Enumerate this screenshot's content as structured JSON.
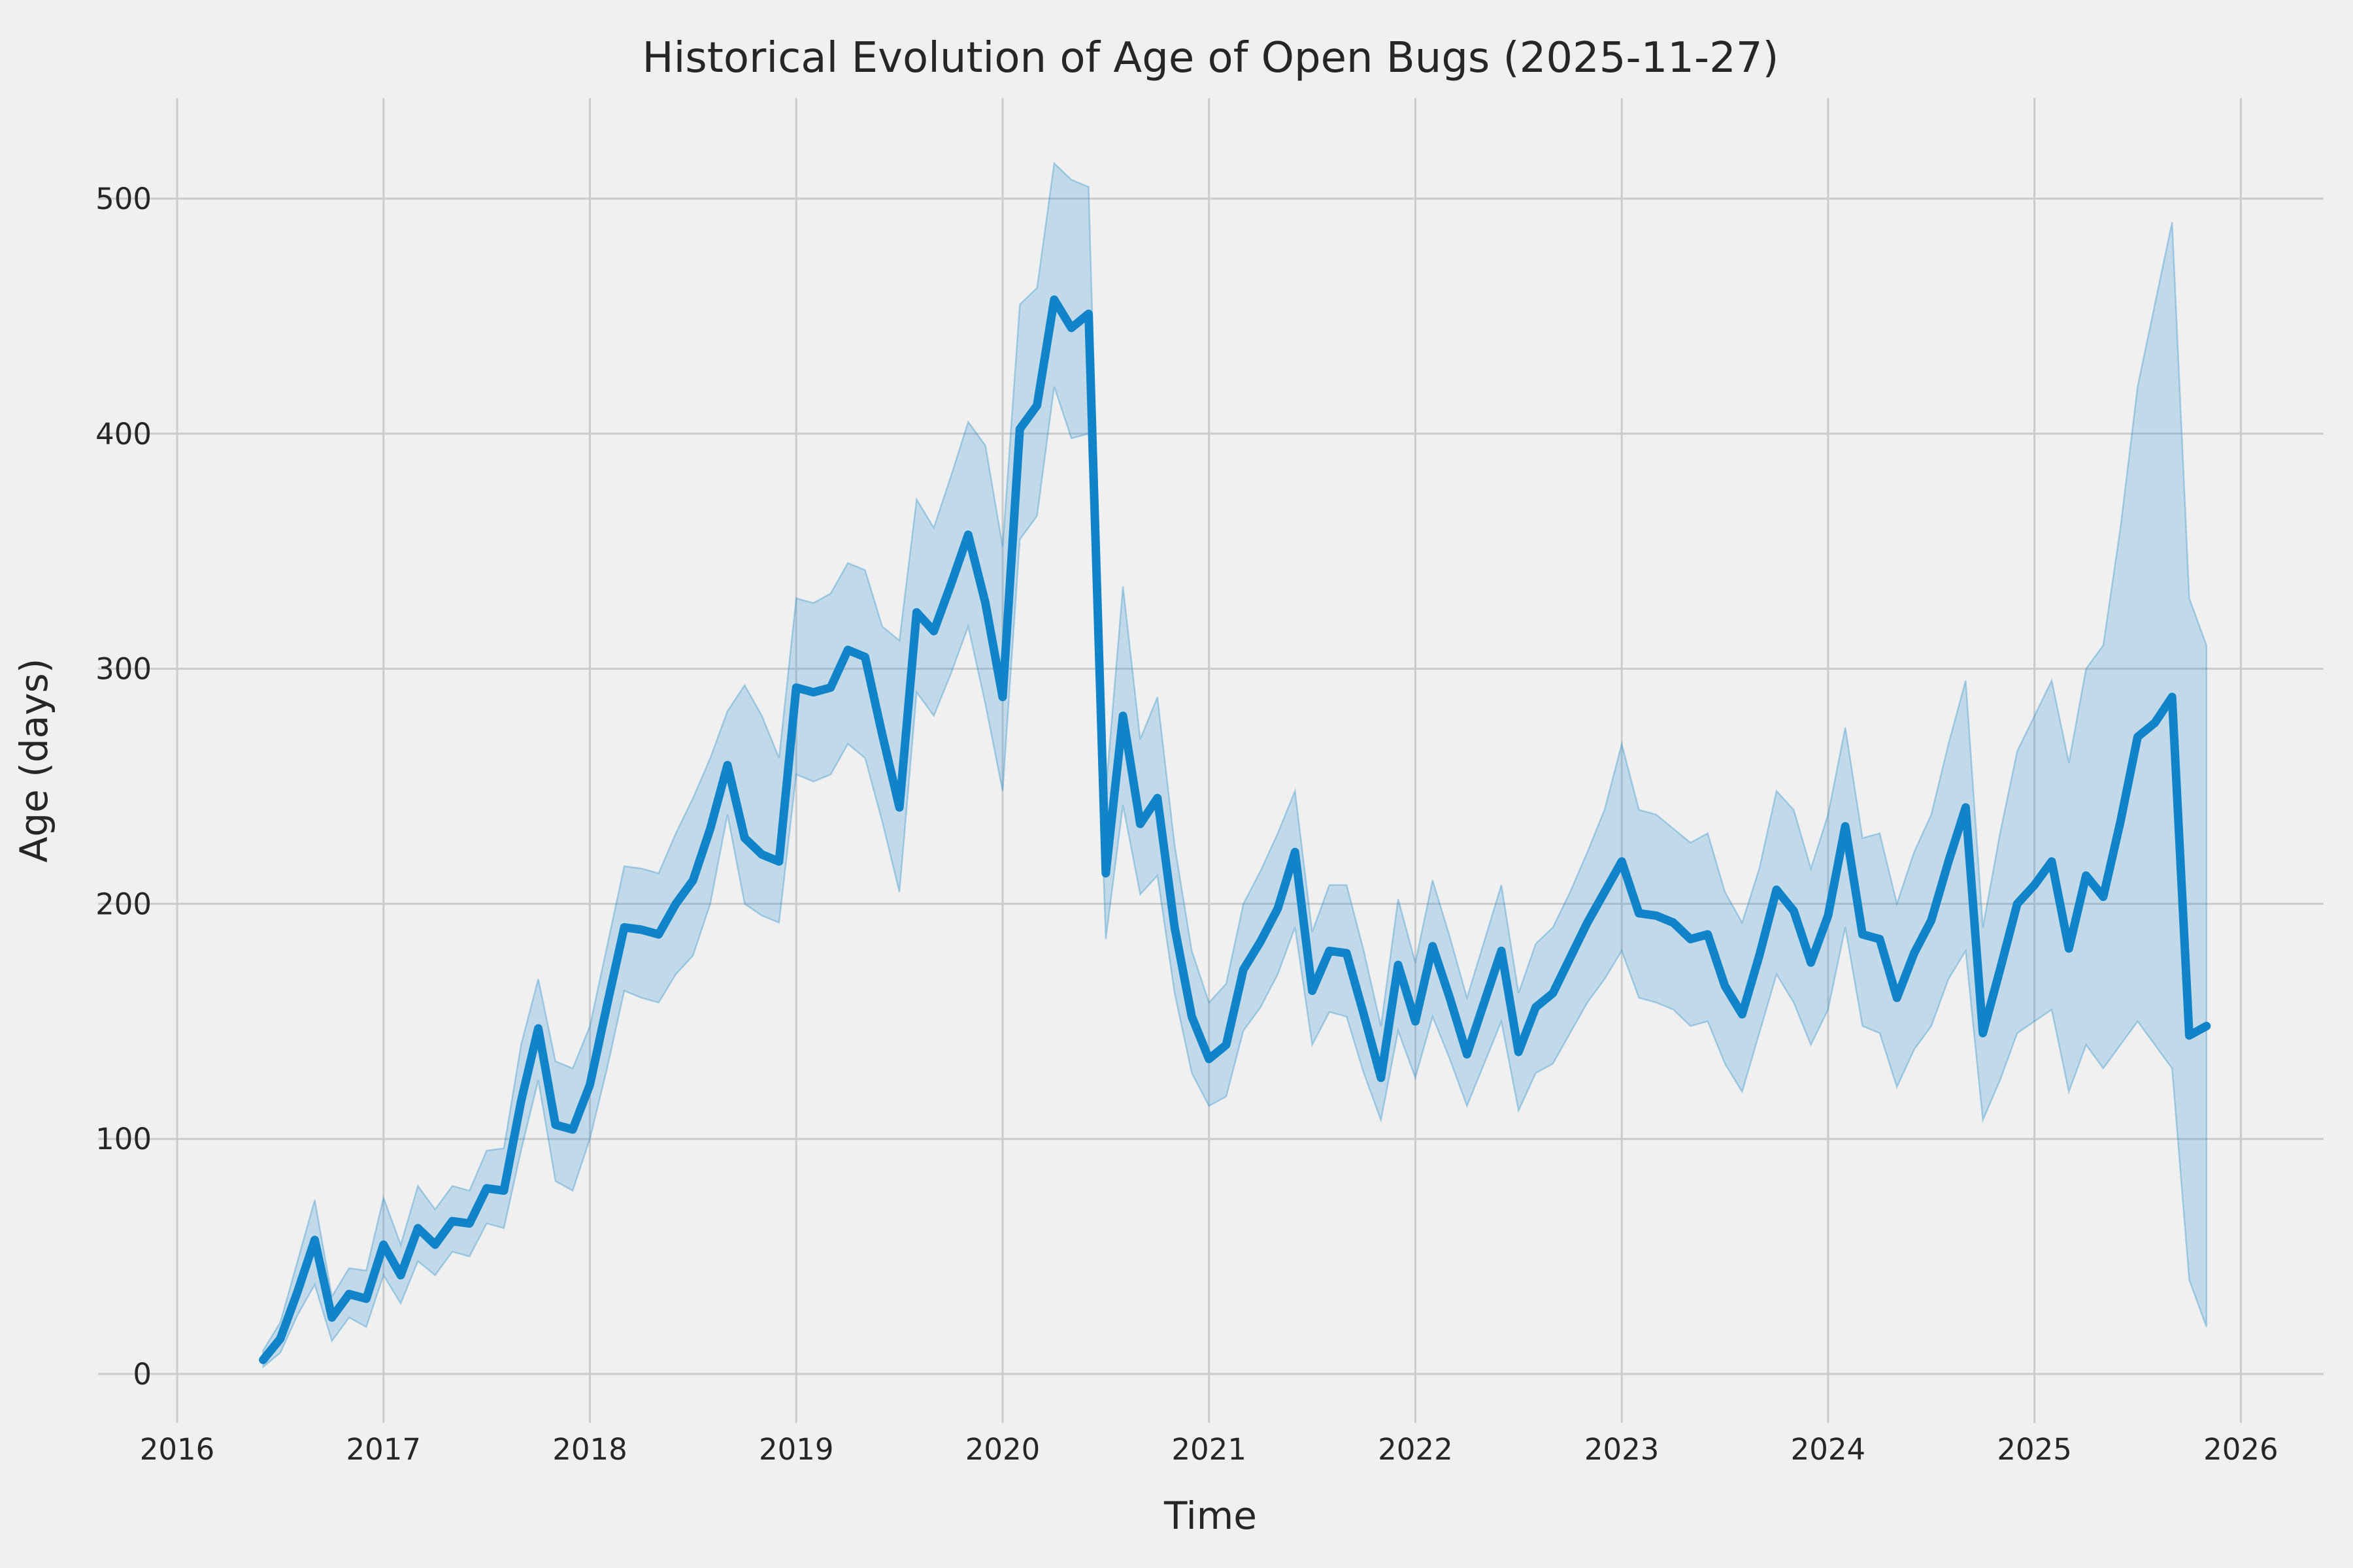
{
  "page": {
    "background_color": "#f0f0f0"
  },
  "chart_data": {
    "type": "line",
    "title": "Historical Evolution of Age of Open Bugs (2025-11-27)",
    "xlabel": "Time",
    "ylabel": "Age (days)",
    "grid": true,
    "legend": "none",
    "x_ticks": [
      "2016",
      "2017",
      "2018",
      "2019",
      "2020",
      "2021",
      "2022",
      "2023",
      "2024",
      "2025",
      "2026"
    ],
    "y_ticks": [
      0,
      100,
      200,
      300,
      400,
      500
    ],
    "xlim_years": [
      2015.62,
      2026.42
    ],
    "ylim": [
      -21,
      543
    ],
    "colors": {
      "line": "#1184c9",
      "band_fill": "rgba(17,132,201,0.21)",
      "band_edge": "rgba(17,132,201,0.30)",
      "grid": "#cbcbcb",
      "text": "#262626",
      "background": "#f0f0f0"
    },
    "series": [
      {
        "start_year": 2016,
        "start_month": 6,
        "frequency": "monthly",
        "values": [
          6,
          15,
          35,
          57,
          24,
          34,
          32,
          55,
          42,
          62,
          55,
          65,
          64,
          79,
          78,
          116,
          147,
          106,
          104,
          123,
          157,
          190,
          189,
          187,
          200,
          210,
          232,
          259,
          228,
          221,
          218,
          292,
          290,
          292,
          308,
          305,
          272,
          241,
          324,
          316,
          336,
          357,
          328,
          288,
          402,
          412,
          457,
          445,
          451,
          213,
          280,
          234,
          245,
          190,
          152,
          134,
          140,
          172,
          184,
          198,
          222,
          163,
          180,
          179,
          153,
          126,
          174,
          150,
          182,
          160,
          136,
          158,
          180,
          137,
          156,
          162,
          177,
          192,
          205,
          218,
          196,
          195,
          192,
          185,
          187,
          165,
          153,
          178,
          206,
          197,
          175,
          195,
          233,
          187,
          185,
          160,
          179,
          193,
          218,
          241,
          145,
          172,
          200,
          208,
          218,
          181,
          212,
          203,
          235,
          271,
          277,
          288,
          144,
          148
        ],
        "band_low": [
          3,
          9,
          25,
          38,
          14,
          24,
          20,
          42,
          30,
          48,
          42,
          52,
          50,
          64,
          62,
          95,
          125,
          82,
          78,
          100,
          130,
          163,
          160,
          158,
          170,
          178,
          200,
          238,
          200,
          195,
          192,
          255,
          252,
          255,
          268,
          262,
          235,
          205,
          290,
          280,
          298,
          318,
          285,
          248,
          355,
          365,
          420,
          398,
          400,
          185,
          242,
          204,
          212,
          162,
          128,
          114,
          118,
          146,
          156,
          170,
          190,
          140,
          154,
          152,
          128,
          108,
          146,
          126,
          152,
          134,
          114,
          132,
          150,
          112,
          128,
          132,
          145,
          158,
          168,
          180,
          160,
          158,
          155,
          148,
          150,
          132,
          120,
          145,
          170,
          158,
          140,
          155,
          190,
          148,
          145,
          122,
          138,
          148,
          168,
          180,
          108,
          125,
          145,
          150,
          155,
          120,
          140,
          130,
          140,
          150,
          140,
          130,
          40,
          20
        ],
        "band_high": [
          10,
          22,
          48,
          74,
          33,
          45,
          44,
          75,
          55,
          80,
          70,
          80,
          78,
          95,
          96,
          140,
          168,
          133,
          130,
          148,
          182,
          216,
          215,
          213,
          230,
          245,
          262,
          282,
          293,
          280,
          262,
          330,
          328,
          332,
          345,
          342,
          318,
          312,
          372,
          360,
          382,
          405,
          395,
          352,
          455,
          462,
          515,
          508,
          505,
          248,
          335,
          270,
          288,
          225,
          180,
          158,
          166,
          200,
          214,
          230,
          248,
          188,
          208,
          208,
          180,
          148,
          202,
          175,
          210,
          186,
          160,
          184,
          208,
          162,
          183,
          190,
          205,
          222,
          240,
          268,
          240,
          238,
          232,
          226,
          230,
          205,
          192,
          215,
          248,
          240,
          215,
          238,
          275,
          228,
          230,
          200,
          222,
          238,
          268,
          295,
          190,
          230,
          265,
          280,
          295,
          260,
          300,
          310,
          360,
          420,
          455,
          490,
          330,
          310
        ]
      }
    ]
  }
}
